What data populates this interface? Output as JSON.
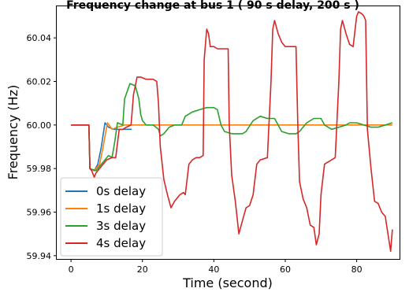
{
  "chart_data": {
    "type": "line",
    "title": "Frequency change at bus 1 ( 90 s delay, 200 s )",
    "xlabel": "Time (second)",
    "ylabel": "Frequency (Hz)",
    "xlim": [
      -4,
      92
    ],
    "ylim": [
      59.9385,
      60.0545
    ],
    "xticks": [
      0,
      20,
      40,
      60,
      80
    ],
    "yticks": [
      59.94,
      59.96,
      59.98,
      60.0,
      60.02,
      60.04
    ],
    "ytick_labels": [
      "59.94",
      "59.96",
      "59.98",
      "60.00",
      "60.02",
      "60.04"
    ],
    "grid": false,
    "legend_position": "lower-left",
    "series": [
      {
        "name": "0s delay",
        "color": "#1f77b4",
        "points": [
          [
            0,
            60.0
          ],
          [
            5,
            60.0
          ],
          [
            5.3,
            59.98
          ],
          [
            6.5,
            59.979
          ],
          [
            7.5,
            59.982
          ],
          [
            8.5,
            59.99
          ],
          [
            9.5,
            60.001
          ],
          [
            10.5,
            59.999
          ],
          [
            12,
            59.998
          ],
          [
            14,
            59.998
          ],
          [
            16,
            59.998
          ],
          [
            17,
            59.998
          ]
        ]
      },
      {
        "name": "1s delay",
        "color": "#ff7f0e",
        "points": [
          [
            0,
            60.0
          ],
          [
            5,
            60.0
          ],
          [
            5.3,
            59.98
          ],
          [
            6.5,
            59.979
          ],
          [
            8,
            59.982
          ],
          [
            9,
            59.99
          ],
          [
            10.2,
            60.001
          ],
          [
            11.5,
            59.998
          ],
          [
            13,
            59.999
          ],
          [
            15,
            60.0
          ],
          [
            20,
            60.0
          ],
          [
            30,
            60.0
          ],
          [
            40,
            60.0
          ],
          [
            50,
            60.0
          ],
          [
            60,
            60.0
          ],
          [
            70,
            60.0
          ],
          [
            80,
            60.0
          ],
          [
            90,
            60.0
          ]
        ]
      },
      {
        "name": "3s delay",
        "color": "#2ca02c",
        "points": [
          [
            0,
            60.0
          ],
          [
            5,
            60.0
          ],
          [
            5.3,
            59.98
          ],
          [
            7,
            59.979
          ],
          [
            9,
            59.983
          ],
          [
            10.5,
            59.986
          ],
          [
            11.5,
            59.985
          ],
          [
            12.3,
            59.993
          ],
          [
            13,
            60.001
          ],
          [
            14.5,
            60.0
          ],
          [
            15,
            60.012
          ],
          [
            16.5,
            60.019
          ],
          [
            18,
            60.018
          ],
          [
            19,
            60.012
          ],
          [
            19.5,
            60.005
          ],
          [
            20,
            60.002
          ],
          [
            21,
            60.0
          ],
          [
            23,
            60.0
          ],
          [
            24.5,
            59.998
          ],
          [
            25,
            59.995
          ],
          [
            26,
            59.996
          ],
          [
            27.5,
            59.999
          ],
          [
            29,
            60.0
          ],
          [
            31,
            60.0
          ],
          [
            32,
            60.004
          ],
          [
            34,
            60.006
          ],
          [
            36,
            60.007
          ],
          [
            38,
            60.008
          ],
          [
            40,
            60.008
          ],
          [
            41,
            60.007
          ],
          [
            42,
            60.0
          ],
          [
            43,
            59.997
          ],
          [
            45,
            59.996
          ],
          [
            47,
            59.996
          ],
          [
            48,
            59.996
          ],
          [
            49,
            59.997
          ],
          [
            51,
            60.002
          ],
          [
            53,
            60.004
          ],
          [
            55,
            60.003
          ],
          [
            57,
            60.003
          ],
          [
            58,
            60.0
          ],
          [
            59,
            59.997
          ],
          [
            61,
            59.996
          ],
          [
            63,
            59.996
          ],
          [
            64,
            59.997
          ],
          [
            66,
            60.001
          ],
          [
            68,
            60.003
          ],
          [
            70,
            60.003
          ],
          [
            71,
            60.0
          ],
          [
            73,
            59.998
          ],
          [
            75,
            59.999
          ],
          [
            77,
            60.0
          ],
          [
            78,
            60.001
          ],
          [
            80,
            60.001
          ],
          [
            82,
            60.0
          ],
          [
            84,
            59.999
          ],
          [
            86,
            59.999
          ],
          [
            88,
            60.0
          ],
          [
            90,
            60.001
          ]
        ]
      },
      {
        "name": "4s delay",
        "color": "#d62728",
        "points": [
          [
            0,
            60.0
          ],
          [
            5,
            60.0
          ],
          [
            5.3,
            59.98
          ],
          [
            5.8,
            59.979
          ],
          [
            6.5,
            59.976
          ],
          [
            7,
            59.978
          ],
          [
            9,
            59.982
          ],
          [
            10,
            59.984
          ],
          [
            11.5,
            59.985
          ],
          [
            12.5,
            59.985
          ],
          [
            13.5,
            59.998
          ],
          [
            14.5,
            59.998
          ],
          [
            15.5,
            59.999
          ],
          [
            16.8,
            60.0
          ],
          [
            17.5,
            60.014
          ],
          [
            18.5,
            60.022
          ],
          [
            19.5,
            60.022
          ],
          [
            21,
            60.021
          ],
          [
            23,
            60.021
          ],
          [
            24,
            60.02
          ],
          [
            24.5,
            60.01
          ],
          [
            25,
            59.99
          ],
          [
            26,
            59.975
          ],
          [
            27,
            59.968
          ],
          [
            28,
            59.962
          ],
          [
            29,
            59.965
          ],
          [
            30.5,
            59.968
          ],
          [
            31.5,
            59.969
          ],
          [
            32,
            59.968
          ],
          [
            33,
            59.982
          ],
          [
            34,
            59.984
          ],
          [
            35,
            59.985
          ],
          [
            36,
            59.985
          ],
          [
            37,
            59.986
          ],
          [
            37.3,
            60.03
          ],
          [
            38,
            60.044
          ],
          [
            38.5,
            60.042
          ],
          [
            39,
            60.036
          ],
          [
            40,
            60.036
          ],
          [
            41,
            60.035
          ],
          [
            42,
            60.035
          ],
          [
            43,
            60.035
          ],
          [
            44,
            60.035
          ],
          [
            44.3,
            60.0
          ],
          [
            45,
            59.977
          ],
          [
            46,
            59.965
          ],
          [
            47,
            59.95
          ],
          [
            48,
            59.956
          ],
          [
            49,
            59.962
          ],
          [
            50,
            59.963
          ],
          [
            51,
            59.968
          ],
          [
            52,
            59.982
          ],
          [
            53,
            59.984
          ],
          [
            55,
            59.985
          ],
          [
            56,
            60.02
          ],
          [
            56.5,
            60.044
          ],
          [
            57,
            60.048
          ],
          [
            58,
            60.042
          ],
          [
            59,
            60.038
          ],
          [
            60,
            60.036
          ],
          [
            62,
            60.036
          ],
          [
            63,
            60.036
          ],
          [
            63.5,
            60.0
          ],
          [
            64,
            59.974
          ],
          [
            65,
            59.966
          ],
          [
            66,
            59.962
          ],
          [
            67,
            59.954
          ],
          [
            68,
            59.953
          ],
          [
            68.7,
            59.945
          ],
          [
            69.5,
            59.95
          ],
          [
            70,
            59.968
          ],
          [
            71,
            59.982
          ],
          [
            73,
            59.984
          ],
          [
            74,
            59.985
          ],
          [
            75,
            60.02
          ],
          [
            75.5,
            60.044
          ],
          [
            76,
            60.048
          ],
          [
            77,
            60.042
          ],
          [
            78,
            60.037
          ],
          [
            79,
            60.036
          ],
          [
            80,
            60.05
          ],
          [
            80.5,
            60.052
          ],
          [
            81.5,
            60.051
          ],
          [
            82,
            60.05
          ],
          [
            82.5,
            60.048
          ],
          [
            83,
            59.998
          ],
          [
            84,
            59.98
          ],
          [
            85,
            59.965
          ],
          [
            86,
            59.964
          ],
          [
            87,
            59.96
          ],
          [
            88,
            59.958
          ],
          [
            89.5,
            59.942
          ],
          [
            90,
            59.952
          ]
        ]
      }
    ]
  }
}
